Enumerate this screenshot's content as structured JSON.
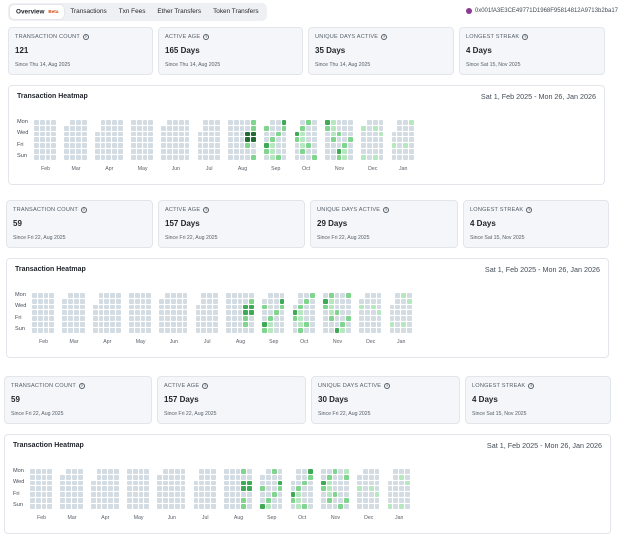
{
  "tabs": [
    {
      "label": "Overview",
      "badge": "Beta",
      "active": true
    },
    {
      "label": "Transactions"
    },
    {
      "label": "Txn Fees"
    },
    {
      "label": "Ether Transfers"
    },
    {
      "label": "Token Transfers"
    }
  ],
  "address": "0x001fA3E3CE49771D1968F95814812A9713b2ba17",
  "sections": [
    {
      "stats": [
        {
          "label": "TRANSACTION COUNT",
          "value": "121",
          "since": "Since Thu 14, Aug 2025"
        },
        {
          "label": "ACTIVE AGE",
          "value": "165 Days",
          "since": "Since Thu 14, Aug 2025"
        },
        {
          "label": "UNIQUE DAYS ACTIVE",
          "value": "35 Days",
          "since": "Since Thu 14, Aug 2025"
        },
        {
          "label": "LONGEST STREAK",
          "value": "4 Days",
          "since": "Since Sat 15, Nov 2025"
        }
      ],
      "heatmap": {
        "title": "Transaction Heatmap",
        "range": "Sat 1, Feb 2025 - Mon 26, Jan 2026",
        "day_labels": [
          "Mon",
          "Wed",
          "Fri",
          "Sun"
        ],
        "months": [
          "Feb",
          "Mar",
          "Apr",
          "May",
          "Jun",
          "Jul",
          "Aug",
          "Sep",
          "Oct",
          "Nov",
          "Dec",
          "Jan"
        ]
      }
    },
    {
      "stats": [
        {
          "label": "TRANSACTION COUNT",
          "value": "59",
          "since": "Since Fri 22, Aug 2025"
        },
        {
          "label": "ACTIVE AGE",
          "value": "157 Days",
          "since": "Since Fri 22, Aug 2025"
        },
        {
          "label": "UNIQUE DAYS ACTIVE",
          "value": "29 Days",
          "since": "Since Fri 22, Aug 2025"
        },
        {
          "label": "LONGEST STREAK",
          "value": "4 Days",
          "since": "Since Sat 15, Nov 2025"
        }
      ],
      "heatmap": {
        "title": "Transaction Heatmap",
        "range": "Sat 1, Feb 2025 - Mon 26, Jan 2026",
        "day_labels": [
          "Mon",
          "Wed",
          "Fri",
          "Sun"
        ],
        "months": [
          "Feb",
          "Mar",
          "Apr",
          "May",
          "Jun",
          "Jul",
          "Aug",
          "Sep",
          "Oct",
          "Nov",
          "Dec",
          "Jan"
        ]
      }
    },
    {
      "stats": [
        {
          "label": "TRANSACTION COUNT",
          "value": "59",
          "since": "Since Fri 22, Aug 2025"
        },
        {
          "label": "ACTIVE AGE",
          "value": "157 Days",
          "since": "Since Fri 22, Aug 2025"
        },
        {
          "label": "UNIQUE DAYS ACTIVE",
          "value": "30 Days",
          "since": "Since Fri 22, Aug 2025"
        },
        {
          "label": "LONGEST STREAK",
          "value": "4 Days",
          "since": "Since Sat 15, Nov 2025"
        }
      ],
      "heatmap": {
        "title": "Transaction Heatmap",
        "range": "Sat 1, Feb 2025 - Mon 26, Jan 2026",
        "day_labels": [
          "Mon",
          "Wed",
          "Fri",
          "Sun"
        ],
        "months": [
          "Feb",
          "Mar",
          "Apr",
          "May",
          "Jun",
          "Jul",
          "Aug",
          "Sep",
          "Oct",
          "Nov",
          "Dec",
          "Jan"
        ]
      }
    }
  ],
  "colors": {
    "empty": "#d3dbe3",
    "l1": "#b5e8bf",
    "l2": "#7fd48e",
    "l3": "#3eaa55",
    "l4": "#1f6b31"
  },
  "icons": {
    "info": "info-circle-icon",
    "address": "address-avatar-icon"
  }
}
